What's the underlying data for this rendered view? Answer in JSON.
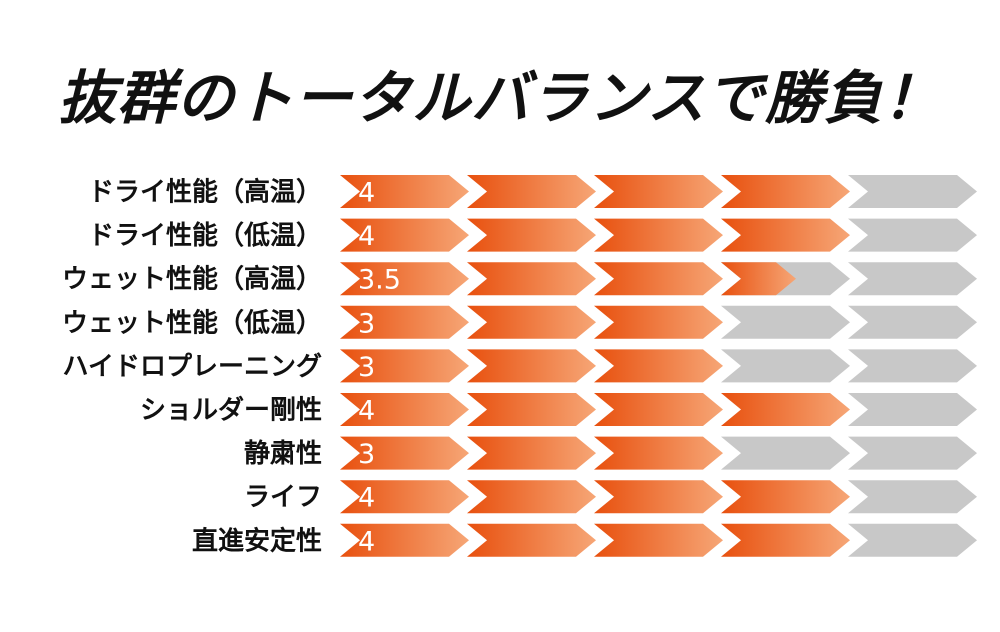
{
  "title": "抜群のトータルバランスで勝負！",
  "chart_data": {
    "type": "bar",
    "orientation": "horizontal",
    "categories": [
      "ドライ性能（高温）",
      "ドライ性能（低温）",
      "ウェット性能（高温）",
      "ウェット性能（低温）",
      "ハイドロプレーニング",
      "ショルダー剛性",
      "静粛性",
      "ライフ",
      "直進安定性"
    ],
    "values": [
      4,
      4,
      3.5,
      3,
      3,
      4,
      3,
      4,
      4
    ],
    "value_labels": [
      "4",
      "4",
      "3.5",
      "3",
      "3",
      "4",
      "3",
      "4",
      "4"
    ],
    "xlim": [
      0,
      5
    ],
    "segments": 5,
    "legend": "none",
    "grid": false,
    "colors": {
      "filled_start": "#e8500e",
      "filled_end": "#f6a676",
      "empty": "#c8c8c8",
      "label_text": "#111111"
    }
  }
}
